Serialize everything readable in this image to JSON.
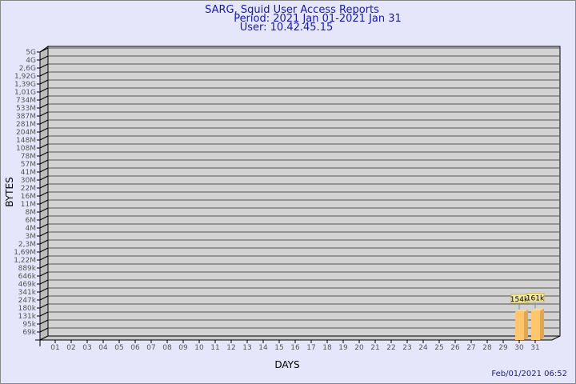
{
  "title_lines": [
    "SARG, Squid User Access Reports",
    "Period: 2021 Jan 01-2021 Jan 31",
    "User: 10.42.45.15"
  ],
  "timestamp": "Feb/01/2021 06:52",
  "colors": {
    "background": "#e6e6fa",
    "wall": "#d3d3d3",
    "bar_front": "#ffc66e",
    "bar_side": "#e0a650",
    "label_box": "#f3eaa0",
    "title": "#1a1aa0"
  },
  "chart_data": {
    "type": "bar",
    "title": "SARG, Squid User Access Reports",
    "xlabel": "DAYS",
    "ylabel": "BYTES",
    "y_scale": "log",
    "grid": true,
    "three_d": true,
    "yticks": [
      "69k",
      "95k",
      "131k",
      "180k",
      "247k",
      "341k",
      "469k",
      "646k",
      "889k",
      "1,22M",
      "1,69M",
      "2,3M",
      "3M",
      "4M",
      "6M",
      "8M",
      "11M",
      "16M",
      "22M",
      "30M",
      "41M",
      "57M",
      "78M",
      "108M",
      "148M",
      "204M",
      "281M",
      "387M",
      "533M",
      "734M",
      "1,01G",
      "1,39G",
      "1,92G",
      "2,6G",
      "4G",
      "5G"
    ],
    "categories": [
      "01",
      "02",
      "03",
      "04",
      "05",
      "06",
      "07",
      "08",
      "09",
      "10",
      "11",
      "12",
      "13",
      "14",
      "15",
      "16",
      "17",
      "18",
      "19",
      "20",
      "21",
      "22",
      "23",
      "24",
      "25",
      "26",
      "27",
      "28",
      "29",
      "30",
      "31"
    ],
    "values": [
      0,
      0,
      0,
      0,
      0,
      0,
      0,
      0,
      0,
      0,
      0,
      0,
      0,
      0,
      0,
      0,
      0,
      0,
      0,
      0,
      0,
      0,
      0,
      0,
      0,
      0,
      0,
      0,
      0,
      154000,
      161000
    ],
    "data_labels": {
      "30": "154k",
      "31": "161k"
    }
  }
}
